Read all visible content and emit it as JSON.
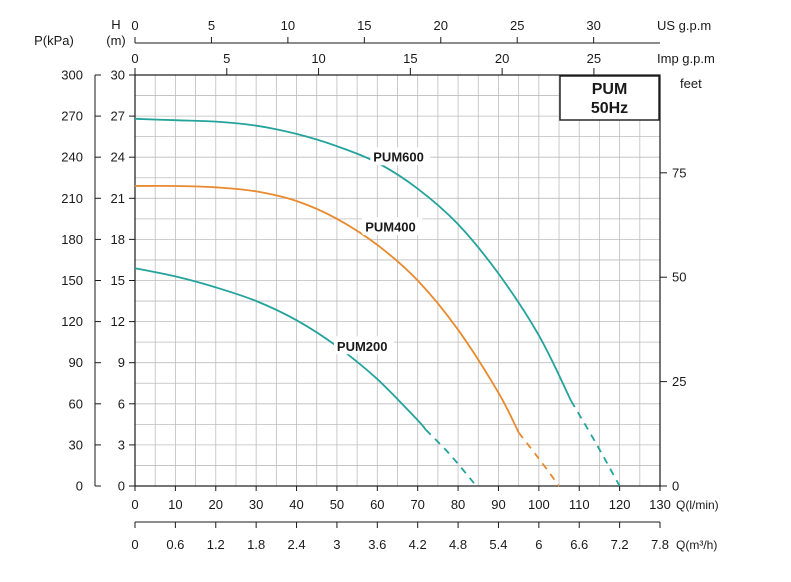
{
  "chart_data": {
    "type": "line",
    "badge": {
      "line1": "PUM",
      "line2": "50Hz"
    },
    "axes": {
      "h_left": {
        "unit": "H",
        "unit2": "(m)",
        "range": [
          0,
          30
        ],
        "ticks": [
          0,
          3,
          6,
          9,
          12,
          15,
          18,
          21,
          24,
          27,
          30
        ]
      },
      "p_left": {
        "unit": "P(kPa)",
        "range": [
          0,
          300
        ],
        "ticks": [
          0,
          30,
          60,
          90,
          120,
          150,
          180,
          210,
          240,
          270,
          300
        ]
      },
      "feet_right": {
        "unit": "feet",
        "ticks": [
          0,
          25,
          50,
          75
        ]
      },
      "us_top": {
        "unit": "US g.p.m",
        "range": [
          0,
          34.34
        ],
        "ticks": [
          0,
          5,
          10,
          15,
          20,
          25,
          30
        ]
      },
      "imp_top": {
        "unit": "Imp g.p.m",
        "range": [
          0,
          28.6
        ],
        "ticks": [
          0,
          5,
          10,
          15,
          20,
          25
        ]
      },
      "q_lmin": {
        "unit": "Q(l/min)",
        "range": [
          0,
          130
        ],
        "ticks": [
          0,
          10,
          20,
          30,
          40,
          50,
          60,
          70,
          80,
          90,
          100,
          110,
          120,
          130
        ]
      },
      "q_m3h": {
        "unit": "Q(m³/h)",
        "range": [
          0,
          7.8
        ],
        "ticks": [
          "0",
          "0.6",
          "1.2",
          "1.8",
          "2.4",
          "3",
          "3.6",
          "4.2",
          "4.8",
          "5.4",
          "6",
          "6.6",
          "7.2",
          "7.8"
        ]
      }
    },
    "series": [
      {
        "name": "PUM200",
        "color": "#23a39c",
        "label_at": [
          50,
          10.2
        ],
        "solid": [
          [
            0,
            15.9
          ],
          [
            10,
            15.3
          ],
          [
            20,
            14.5
          ],
          [
            30,
            13.5
          ],
          [
            40,
            12.1
          ],
          [
            50,
            10.2
          ],
          [
            60,
            7.8
          ],
          [
            70,
            4.8
          ],
          [
            72,
            4.1
          ]
        ],
        "dashed": [
          [
            72,
            4.1
          ],
          [
            78,
            2.3
          ],
          [
            84.5,
            0
          ]
        ]
      },
      {
        "name": "PUM400",
        "color": "#e88a2e",
        "label_at": [
          57,
          18.9
        ],
        "solid": [
          [
            0,
            21.9
          ],
          [
            10,
            21.9
          ],
          [
            20,
            21.8
          ],
          [
            30,
            21.5
          ],
          [
            40,
            20.8
          ],
          [
            50,
            19.5
          ],
          [
            60,
            17.6
          ],
          [
            70,
            15.0
          ],
          [
            80,
            11.4
          ],
          [
            90,
            6.8
          ],
          [
            95,
            3.9
          ]
        ],
        "dashed": [
          [
            95,
            3.9
          ],
          [
            100,
            2.0
          ],
          [
            105,
            0
          ]
        ]
      },
      {
        "name": "PUM600",
        "color": "#23a39c",
        "label_at": [
          59,
          24.0
        ],
        "solid": [
          [
            0,
            26.8
          ],
          [
            10,
            26.7
          ],
          [
            20,
            26.6
          ],
          [
            30,
            26.3
          ],
          [
            40,
            25.7
          ],
          [
            50,
            24.8
          ],
          [
            60,
            23.6
          ],
          [
            70,
            21.7
          ],
          [
            80,
            19.1
          ],
          [
            90,
            15.5
          ],
          [
            100,
            11.0
          ],
          [
            108,
            6.2
          ]
        ],
        "dashed": [
          [
            108,
            6.2
          ],
          [
            114,
            3.2
          ],
          [
            120,
            0
          ]
        ]
      }
    ]
  }
}
